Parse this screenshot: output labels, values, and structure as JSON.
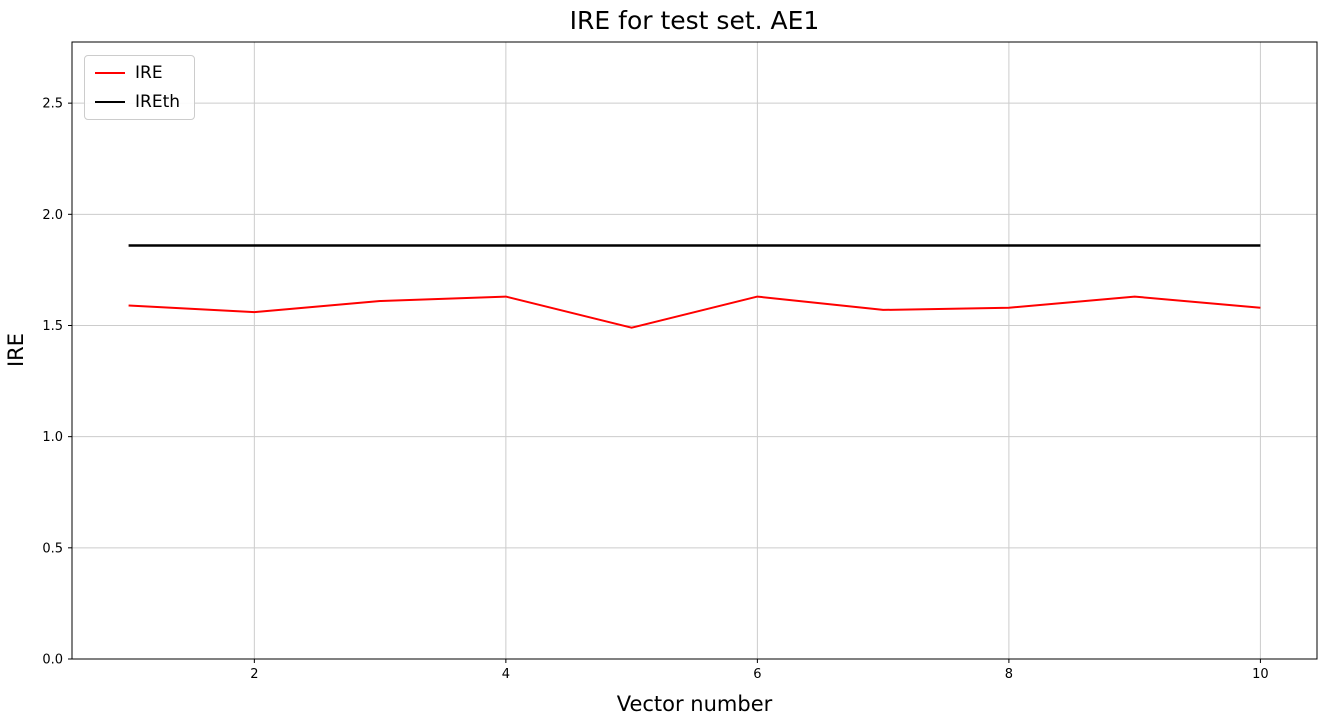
{
  "chart_data": {
    "type": "line",
    "title": "IRE for test set. AE1",
    "xlabel": "Vector number",
    "ylabel": "IRE",
    "x": [
      1,
      2,
      3,
      4,
      5,
      6,
      7,
      8,
      9,
      10
    ],
    "series": [
      {
        "name": "IRE",
        "color": "#ff0000",
        "linewidth": 2,
        "values": [
          1.59,
          1.56,
          1.61,
          1.63,
          1.49,
          1.63,
          1.57,
          1.58,
          1.63,
          1.58
        ]
      },
      {
        "name": "IREth",
        "color": "#000000",
        "linewidth": 2.5,
        "values": [
          1.86,
          1.86,
          1.86,
          1.86,
          1.86,
          1.86,
          1.86,
          1.86,
          1.86,
          1.86
        ]
      }
    ],
    "xlim": [
      0.55,
      10.45
    ],
    "ylim": [
      0,
      2.775
    ],
    "xticks": [
      2,
      4,
      6,
      8,
      10
    ],
    "xtick_labels": [
      "2",
      "4",
      "6",
      "8",
      "10"
    ],
    "yticks": [
      0.0,
      0.5,
      1.0,
      1.5,
      2.0,
      2.5
    ],
    "ytick_labels": [
      "0.0",
      "0.5",
      "1.0",
      "1.5",
      "2.0",
      "2.5"
    ],
    "grid": true,
    "grid_color": "#cccccc",
    "spine_color": "#000000",
    "legend_position": "upper left"
  }
}
